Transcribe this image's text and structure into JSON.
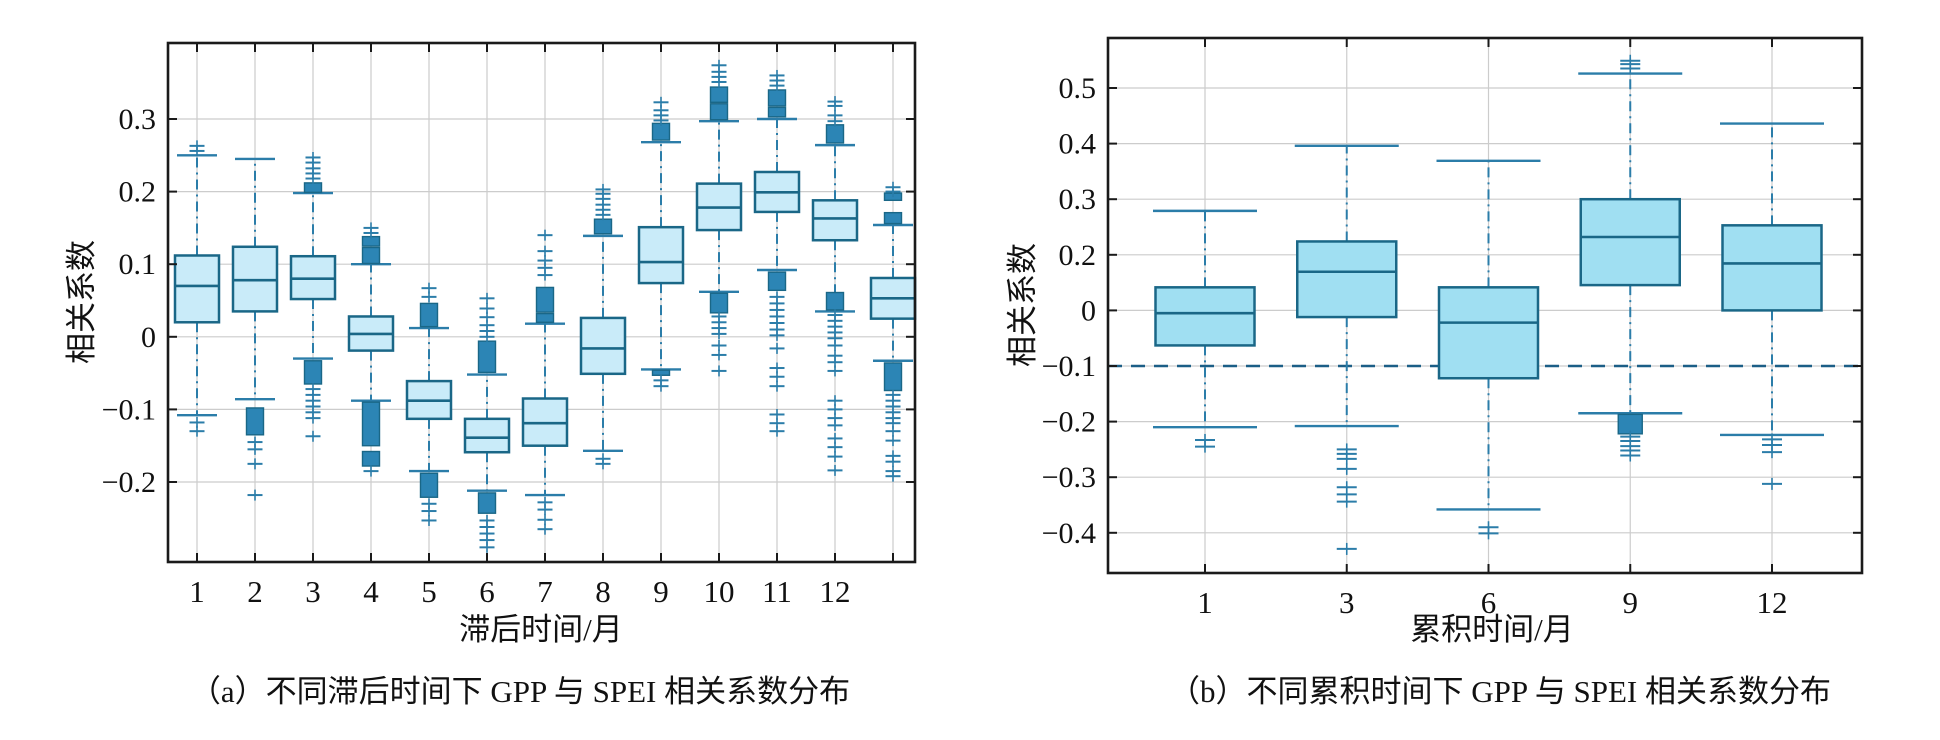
{
  "figure": {
    "background": "#ffffff"
  },
  "colors": {
    "box_fill_a": "#c9ebf9",
    "box_fill_b": "#a0dff2",
    "box_edge": "#1a6787",
    "whisker": "#2b7da9",
    "outlier": "#2b7da9",
    "dense_block": "#2c85b5",
    "grid": "#cccccc",
    "axis": "#1a1a1a",
    "threshold_line": "#1b5e86",
    "text": "#111111"
  },
  "captions": {
    "a": "（a）不同滞后时间下 GPP 与 SPEI 相关系数分布",
    "b": "（b）不同累积时间下 GPP 与 SPEI 相关系数分布"
  },
  "chart_data": [
    {
      "id": "a",
      "type": "boxplot",
      "title": "不同滞后时间下 GPP 与 SPEI 相关系数分布",
      "xlabel": "滞后时间/月",
      "ylabel": "相关系数",
      "grid": true,
      "x_tick_labels": [
        "1",
        "2",
        "3",
        "4",
        "5",
        "6",
        "7",
        "8",
        "9",
        "10",
        "11",
        "12",
        ""
      ],
      "y_tick_labels": [
        "0.3",
        "0.2",
        "0.1",
        "0",
        "−0.1",
        "−0.2"
      ],
      "y_tick_values": [
        0.3,
        0.2,
        0.1,
        0,
        -0.1,
        -0.2
      ],
      "ylim": [
        -0.31,
        0.405
      ],
      "boxes": [
        {
          "x": "1",
          "whislo": -0.108,
          "q1": 0.02,
          "med": 0.07,
          "q3": 0.112,
          "whishi": 0.25,
          "outliers_high": [
            0.256,
            0.263
          ],
          "outliers_low": [
            -0.118,
            -0.13
          ],
          "clusters_high": [],
          "clusters_low": []
        },
        {
          "x": "2",
          "whislo": -0.086,
          "q1": 0.035,
          "med": 0.078,
          "q3": 0.124,
          "whishi": 0.245,
          "outliers_high": [],
          "outliers_low": [
            -0.145,
            -0.155,
            -0.175,
            -0.218
          ],
          "clusters_high": [],
          "clusters_low": [
            [
              -0.098,
              -0.135
            ]
          ]
        },
        {
          "x": "3",
          "whislo": -0.03,
          "q1": 0.052,
          "med": 0.08,
          "q3": 0.111,
          "whishi": 0.198,
          "outliers_high": [
            0.218,
            0.225,
            0.232,
            0.24,
            0.247
          ],
          "outliers_low": [
            -0.072,
            -0.08,
            -0.088,
            -0.096,
            -0.104,
            -0.112,
            -0.137
          ],
          "clusters_high": [
            [
              0.199,
              0.212
            ]
          ],
          "clusters_low": [
            [
              -0.033,
              -0.065
            ]
          ]
        },
        {
          "x": "4",
          "whislo": -0.088,
          "q1": -0.019,
          "med": 0.004,
          "q3": 0.028,
          "whishi": 0.1,
          "outliers_high": [
            0.143,
            0.15
          ],
          "outliers_low": [
            -0.185
          ],
          "clusters_high": [
            [
              0.101,
              0.123
            ],
            [
              0.125,
              0.138
            ]
          ],
          "clusters_low": [
            [
              -0.09,
              -0.15
            ],
            [
              -0.158,
              -0.178
            ]
          ]
        },
        {
          "x": "5",
          "whislo": -0.185,
          "q1": -0.113,
          "med": -0.088,
          "q3": -0.061,
          "whishi": 0.012,
          "outliers_high": [
            0.055,
            0.067
          ],
          "outliers_low": [
            -0.23,
            -0.24,
            -0.253
          ],
          "clusters_high": [
            [
              0.014,
              0.046
            ]
          ],
          "clusters_low": [
            [
              -0.188,
              -0.221
            ]
          ]
        },
        {
          "x": "6",
          "whislo": -0.212,
          "q1": -0.159,
          "med": -0.139,
          "q3": -0.113,
          "whishi": -0.052,
          "outliers_high": [
            0.0,
            0.008,
            0.016,
            0.027,
            0.039,
            0.053
          ],
          "outliers_low": [
            -0.253,
            -0.262,
            -0.271,
            -0.28,
            -0.29
          ],
          "clusters_high": [
            [
              -0.049,
              -0.006
            ]
          ],
          "clusters_low": [
            [
              -0.215,
              -0.243
            ]
          ]
        },
        {
          "x": "7",
          "whislo": -0.218,
          "q1": -0.15,
          "med": -0.119,
          "q3": -0.085,
          "whishi": 0.018,
          "outliers_high": [
            0.085,
            0.095,
            0.105,
            0.118,
            0.14
          ],
          "outliers_low": [
            -0.228,
            -0.238,
            -0.252,
            -0.265
          ],
          "clusters_high": [
            [
              0.02,
              0.032
            ],
            [
              0.034,
              0.068
            ]
          ],
          "clusters_low": []
        },
        {
          "x": "8",
          "whislo": -0.157,
          "q1": -0.051,
          "med": -0.016,
          "q3": 0.026,
          "whishi": 0.139,
          "outliers_high": [
            0.168,
            0.175,
            0.182,
            0.19,
            0.197,
            0.203
          ],
          "outliers_low": [
            -0.168,
            -0.175
          ],
          "clusters_high": [
            [
              0.142,
              0.162
            ]
          ],
          "clusters_low": []
        },
        {
          "x": "9",
          "whislo": -0.045,
          "q1": 0.074,
          "med": 0.103,
          "q3": 0.151,
          "whishi": 0.268,
          "outliers_high": [
            0.298,
            0.305,
            0.312,
            0.323
          ],
          "outliers_low": [
            -0.06,
            -0.068
          ],
          "clusters_high": [
            [
              0.271,
              0.294
            ]
          ],
          "clusters_low": [
            [
              -0.046,
              -0.053
            ]
          ]
        },
        {
          "x": "10",
          "whislo": 0.062,
          "q1": 0.147,
          "med": 0.178,
          "q3": 0.211,
          "whishi": 0.297,
          "outliers_high": [
            0.351,
            0.358,
            0.365,
            0.374
          ],
          "outliers_low": [
            0.004,
            0.012,
            0.02,
            0.028,
            -0.012,
            -0.025,
            -0.047
          ],
          "clusters_high": [
            [
              0.299,
              0.321
            ],
            [
              0.323,
              0.344
            ]
          ],
          "clusters_low": [
            [
              0.033,
              0.06
            ]
          ]
        },
        {
          "x": "11",
          "whislo": 0.092,
          "q1": 0.172,
          "med": 0.199,
          "q3": 0.227,
          "whishi": 0.3,
          "outliers_high": [
            0.346,
            0.353,
            0.36
          ],
          "outliers_low": [
            0.055,
            0.046,
            0.037,
            0.028,
            0.019,
            0.01,
            0.002,
            -0.016,
            -0.043,
            -0.055,
            -0.068,
            -0.107,
            -0.119,
            -0.13
          ],
          "clusters_high": [
            [
              0.303,
              0.316
            ],
            [
              0.318,
              0.34
            ]
          ],
          "clusters_low": [
            [
              0.064,
              0.089
            ]
          ]
        },
        {
          "x": "12",
          "whislo": 0.035,
          "q1": 0.133,
          "med": 0.163,
          "q3": 0.188,
          "whishi": 0.264,
          "outliers_high": [
            0.297,
            0.305,
            0.318,
            0.324
          ],
          "outliers_low": [
            0.03,
            0.022,
            0.014,
            0.006,
            -0.002,
            -0.012,
            -0.026,
            -0.035,
            -0.047,
            -0.088,
            -0.1,
            -0.112,
            -0.122,
            -0.14,
            -0.152,
            -0.165,
            -0.184
          ],
          "clusters_high": [
            [
              0.267,
              0.292
            ]
          ],
          "clusters_low": [
            [
              0.037,
              0.061
            ]
          ]
        },
        {
          "x": "",
          "whislo": -0.033,
          "q1": 0.025,
          "med": 0.053,
          "q3": 0.081,
          "whishi": 0.154,
          "outliers_high": [
            0.2,
            0.206
          ],
          "outliers_low": [
            -0.08,
            -0.088,
            -0.096,
            -0.104,
            -0.112,
            -0.119,
            -0.13,
            -0.143,
            -0.164,
            -0.172,
            -0.185,
            -0.192
          ],
          "clusters_high": [
            [
              0.156,
              0.171
            ],
            [
              0.188,
              0.198
            ]
          ],
          "clusters_low": [
            [
              -0.036,
              -0.074
            ]
          ]
        }
      ]
    },
    {
      "id": "b",
      "type": "boxplot",
      "title": "不同累积时间下 GPP 与 SPEI 相关系数分布",
      "xlabel": "累积时间/月",
      "ylabel": "相关系数",
      "grid": true,
      "threshold": -0.1,
      "x_tick_labels": [
        "1",
        "3",
        "6",
        "9",
        "12"
      ],
      "y_tick_labels": [
        "0.5",
        "0.4",
        "0.3",
        "0.2",
        "0",
        "−0.1",
        "−0.2",
        "−0.3",
        "−0.4"
      ],
      "y_tick_values": [
        0.5,
        0.4,
        0.3,
        0.2,
        0,
        -0.1,
        -0.2,
        -0.3,
        -0.4
      ],
      "ylim": [
        -0.47,
        0.59
      ],
      "boxes": [
        {
          "x": "1",
          "whislo": -0.21,
          "q1": -0.063,
          "med": -0.005,
          "q3": 0.083,
          "whishi": 0.279,
          "outliers_high": [],
          "outliers_low": [
            -0.233,
            -0.245
          ],
          "clusters_high": [],
          "clusters_low": []
        },
        {
          "x": "3",
          "whislo": -0.208,
          "q1": -0.012,
          "med": 0.139,
          "q3": 0.224,
          "whishi": 0.396,
          "outliers_high": [],
          "outliers_low": [
            -0.25,
            -0.258,
            -0.267,
            -0.285,
            -0.318,
            -0.331,
            -0.344,
            -0.429
          ],
          "clusters_high": [],
          "clusters_low": []
        },
        {
          "x": "6",
          "whislo": -0.358,
          "q1": -0.122,
          "med": -0.022,
          "q3": 0.083,
          "whishi": 0.369,
          "outliers_high": [],
          "outliers_low": [
            -0.39,
            -0.401
          ],
          "clusters_high": [],
          "clusters_low": []
        },
        {
          "x": "9",
          "whislo": -0.185,
          "q1": 0.091,
          "med": 0.232,
          "q3": 0.3,
          "whishi": 0.526,
          "outliers_high": [
            0.535,
            0.543,
            0.549
          ],
          "outliers_low": [
            -0.227,
            -0.235,
            -0.244,
            -0.252,
            -0.261
          ],
          "clusters_high": [],
          "clusters_low": [
            [
              -0.187,
              -0.222
            ]
          ]
        },
        {
          "x": "12",
          "whislo": -0.224,
          "q1": 0.0,
          "med": 0.169,
          "q3": 0.253,
          "whishi": 0.436,
          "outliers_high": [],
          "outliers_low": [
            -0.232,
            -0.242,
            -0.255,
            -0.312
          ],
          "clusters_high": [],
          "clusters_low": []
        }
      ]
    }
  ]
}
